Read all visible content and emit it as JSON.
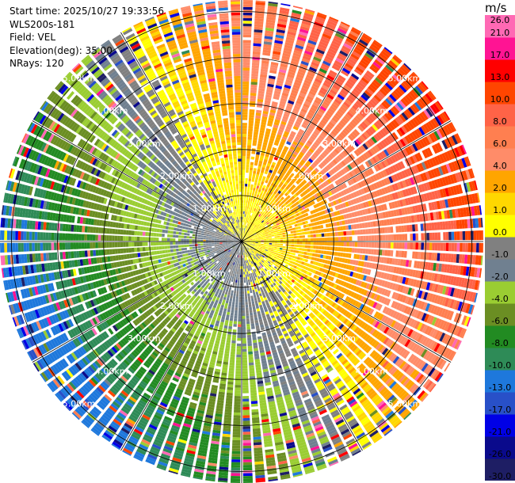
{
  "header": {
    "start_time": "Start time: 2025/10/27 19:33:56",
    "station": "WLS200s-181",
    "field": "Field: VEL",
    "elevation": "Elevation(deg): 35.00",
    "nrays": "NRays: 120"
  },
  "chart_data": {
    "type": "heatmap",
    "subtype": "ppi-polar",
    "field": "VEL",
    "unit": "m/s",
    "elevation_deg": 35.0,
    "n_rays": 120,
    "max_range_km": 5.25,
    "range_rings_km": [
      1,
      2,
      3,
      4,
      5
    ],
    "ring_labels": [
      "1.00km",
      "2.00km",
      "3.00km",
      "4.00km",
      "5.00km"
    ],
    "azimuth_lines_deg": [
      0,
      30,
      60,
      90,
      120,
      150,
      180,
      210,
      240,
      270,
      300,
      330
    ],
    "colorbar": {
      "boundaries": [
        -30.0,
        -26.0,
        -21.0,
        -17.0,
        -13.0,
        -10.0,
        -8.0,
        -6.0,
        -4.0,
        -2.0,
        -1.0,
        0.0,
        1.0,
        2.0,
        4.0,
        6.0,
        8.0,
        10.0,
        13.0,
        17.0,
        21.0,
        26.0
      ],
      "tick_labels": [
        "-30.0",
        "-26.0",
        "-21.0",
        "-17.0",
        "-13.0",
        "-10.0",
        "-8.0",
        "-6.0",
        "-4.0",
        "-2.0",
        "-1.0",
        "0.0",
        "1.0",
        "2.0",
        "4.0",
        "6.0",
        "8.0",
        "10.0",
        "13.0",
        "17.0",
        "21.0",
        "26.0"
      ],
      "colors": [
        "#1e1e64",
        "#0a0a8c",
        "#0000e6",
        "#2850c8",
        "#1e78dc",
        "#2e8b57",
        "#228b22",
        "#6b8e23",
        "#9acd32",
        "#708090",
        "#808080",
        "#ffff00",
        "#ffd700",
        "#ffa500",
        "#ff8c69",
        "#ff7f50",
        "#ff6347",
        "#ff4500",
        "#ff0000",
        "#ff1493",
        "#ff69b4"
      ]
    },
    "wind_pattern": {
      "description": "Radial velocity dipole; approaching (negative) flow to the southwest, receding (positive) flow to the northeast",
      "speed_profile_ms": [
        [
          0.5,
          1
        ],
        [
          1.5,
          2.5
        ],
        [
          2.5,
          5
        ],
        [
          3.5,
          8
        ],
        [
          4.5,
          11
        ],
        [
          5.25,
          13
        ]
      ],
      "max_positive_azimuth_deg": 60,
      "noise_onset_km": 3.0
    }
  }
}
